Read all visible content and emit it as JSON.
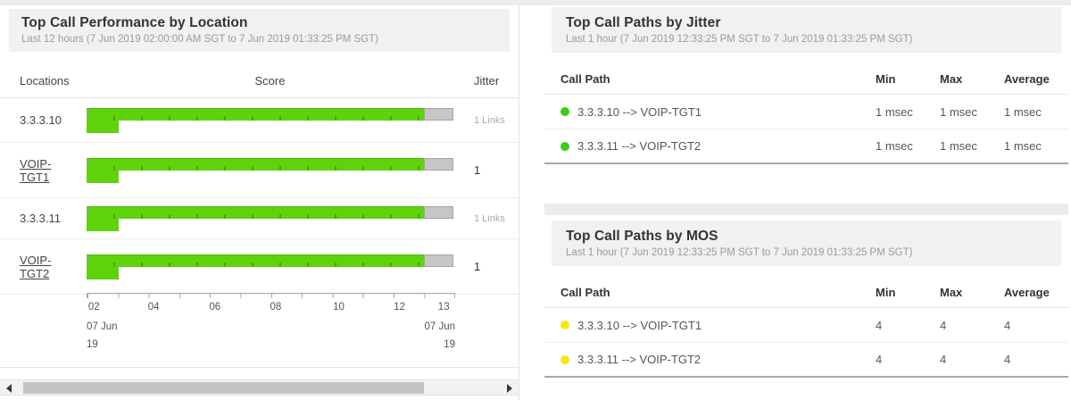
{
  "colors": {
    "bar_green": "#5ed30c",
    "bar_tail": "#c6c6c6",
    "jitter_dot": "#3ecc17",
    "mos_dot": "#f6e711"
  },
  "left_panel": {
    "title": "Top Call Performance by Location",
    "subtitle": "Last 12 hours (7 Jun 2019 02:00:00 AM SGT to 7 Jun 2019 01:33:25 PM SGT)",
    "columns": {
      "locations": "Locations",
      "score": "Score",
      "jitter": "Jitter"
    },
    "rows": [
      {
        "location": "3.3.3.10",
        "jitter": "1 Links",
        "bar": {
          "green_pct": 92,
          "tail_pct": 8,
          "short_pct": 8.8
        }
      },
      {
        "location": "VOIP-TGT1",
        "jitter": "1",
        "bar": {
          "green_pct": 92,
          "tail_pct": 8,
          "short_pct": 8.8
        }
      },
      {
        "location": "3.3.3.11",
        "jitter": "1 Links",
        "bar": {
          "green_pct": 92,
          "tail_pct": 8,
          "short_pct": 8.8
        }
      },
      {
        "location": "VOIP-TGT2",
        "jitter": "1",
        "bar": {
          "green_pct": 92,
          "tail_pct": 8,
          "short_pct": 8.8
        }
      }
    ],
    "axis": {
      "ticks": [
        "02",
        "04",
        "06",
        "08",
        "10",
        "12",
        "13"
      ],
      "start_date_line1": "07 Jun",
      "start_date_line2": "19",
      "end_date_line1": "07 Jun",
      "end_date_line2": "19"
    }
  },
  "jitter_panel": {
    "title": "Top Call Paths by Jitter",
    "subtitle": "Last 1 hour (7 Jun 2019 12:33:25 PM SGT to 7 Jun 2019 01:33:25 PM SGT)",
    "columns": {
      "path": "Call Path",
      "min": "Min",
      "max": "Max",
      "avg": "Average"
    },
    "rows": [
      {
        "path": "3.3.3.10 --> VOIP-TGT1",
        "min": "1 msec",
        "max": "1 msec",
        "avg": "1 msec",
        "dot_color": "#3ecc17"
      },
      {
        "path": "3.3.3.11 --> VOIP-TGT2",
        "min": "1 msec",
        "max": "1 msec",
        "avg": "1 msec",
        "dot_color": "#3ecc17"
      }
    ]
  },
  "mos_panel": {
    "title": "Top Call Paths by MOS",
    "subtitle": "Last 1 hour (7 Jun 2019 12:33:25 PM SGT to 7 Jun 2019 01:33:25 PM SGT)",
    "columns": {
      "path": "Call Path",
      "min": "Min",
      "max": "Max",
      "avg": "Average"
    },
    "rows": [
      {
        "path": "3.3.3.10 --> VOIP-TGT1",
        "min": "4",
        "max": "4",
        "avg": "4",
        "dot_color": "#f6e711"
      },
      {
        "path": "3.3.3.11 --> VOIP-TGT2",
        "min": "4",
        "max": "4",
        "avg": "4",
        "dot_color": "#f6e711"
      }
    ]
  },
  "chart_data": {
    "type": "bar",
    "title": "Top Call Performance by Location — Score timeline",
    "categories": [
      "3.3.3.10",
      "VOIP-TGT1",
      "3.3.3.11",
      "VOIP-TGT2"
    ],
    "series": [
      {
        "name": "score-span-green-pct",
        "values": [
          92,
          92,
          92,
          92
        ]
      },
      {
        "name": "score-span-gray-pct",
        "values": [
          8,
          8,
          8,
          8
        ]
      },
      {
        "name": "secondary-bar-pct",
        "values": [
          8.8,
          8.8,
          8.8,
          8.8
        ]
      }
    ],
    "x_axis": {
      "ticks": [
        "02",
        "04",
        "06",
        "08",
        "10",
        "12",
        "13"
      ],
      "start": "07 Jun 19 02",
      "end": "07 Jun 19 13"
    }
  }
}
